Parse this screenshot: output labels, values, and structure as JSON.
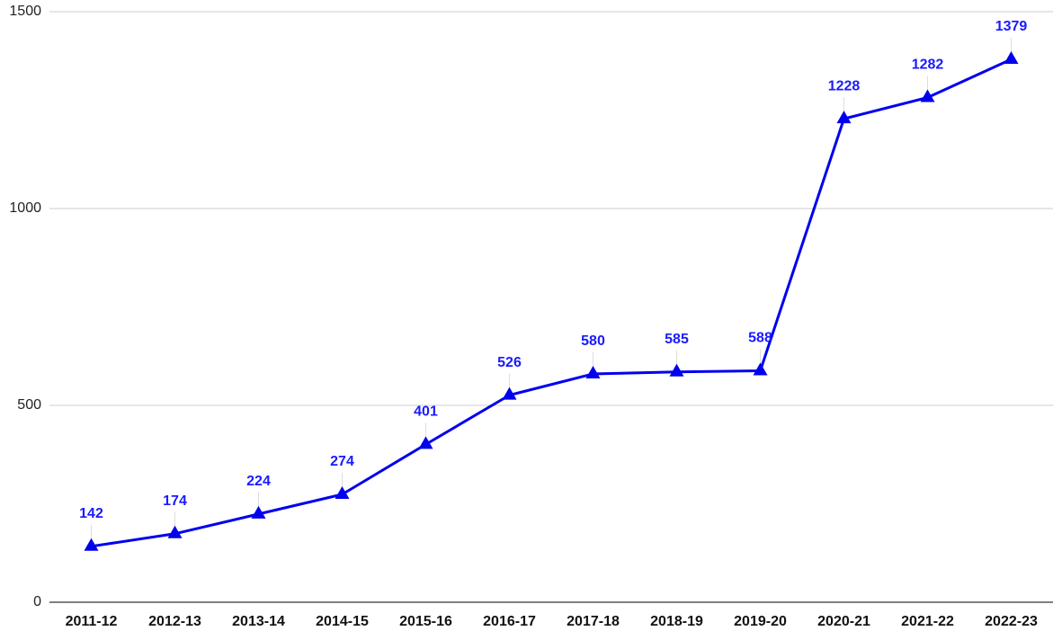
{
  "chart_data": {
    "type": "line",
    "categories": [
      "2011-12",
      "2012-13",
      "2013-14",
      "2014-15",
      "2015-16",
      "2016-17",
      "2017-18",
      "2018-19",
      "2019-20",
      "2020-21",
      "2021-22",
      "2022-23"
    ],
    "values": [
      142,
      174,
      224,
      274,
      401,
      526,
      580,
      585,
      588,
      1228,
      1282,
      1379
    ],
    "color": "#0000ee",
    "ylim": [
      0,
      1500
    ],
    "yticks": [
      0,
      500,
      1000,
      1500
    ],
    "grid": true
  }
}
